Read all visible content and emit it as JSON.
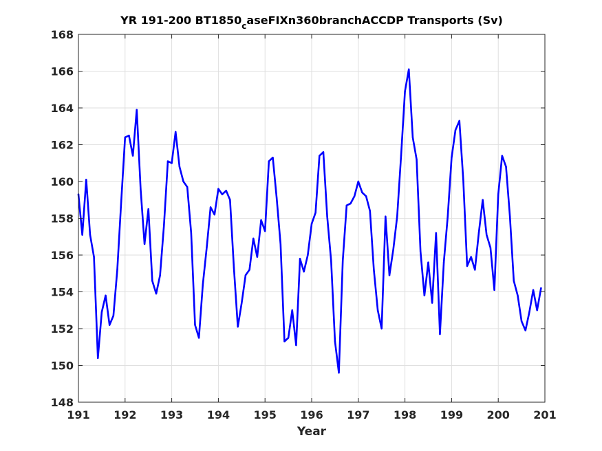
{
  "chart_data": {
    "type": "line",
    "title": {
      "main": "YR 191-200 BT1850",
      "subscript": "c",
      "rest": "aseFIXn360branchACCDP Transports (Sv)"
    },
    "xlabel": "Year",
    "ylabel": "",
    "xlim": [
      191,
      201
    ],
    "ylim": [
      148,
      168
    ],
    "xticks": [
      "191",
      "192",
      "193",
      "194",
      "195",
      "196",
      "197",
      "198",
      "199",
      "200",
      "201"
    ],
    "yticks": [
      "148",
      "150",
      "152",
      "154",
      "156",
      "158",
      "160",
      "162",
      "164",
      "166",
      "168"
    ],
    "grid": true,
    "line_color": "#0000ff",
    "series": [
      {
        "values": [
          [
            191.0,
            159.3
          ],
          [
            191.083,
            157.1
          ],
          [
            191.167,
            160.1
          ],
          [
            191.25,
            157.1
          ],
          [
            191.333,
            155.9
          ],
          [
            191.417,
            150.4
          ],
          [
            191.5,
            152.9
          ],
          [
            191.583,
            153.8
          ],
          [
            191.667,
            152.2
          ],
          [
            191.75,
            152.7
          ],
          [
            191.833,
            155.2
          ],
          [
            191.917,
            158.9
          ],
          [
            192.0,
            162.4
          ],
          [
            192.083,
            162.5
          ],
          [
            192.167,
            161.4
          ],
          [
            192.25,
            163.9
          ],
          [
            192.333,
            159.6
          ],
          [
            192.417,
            156.6
          ],
          [
            192.5,
            158.5
          ],
          [
            192.583,
            154.6
          ],
          [
            192.667,
            153.9
          ],
          [
            192.75,
            154.9
          ],
          [
            192.833,
            157.6
          ],
          [
            192.917,
            161.1
          ],
          [
            193.0,
            161.0
          ],
          [
            193.083,
            162.7
          ],
          [
            193.167,
            160.8
          ],
          [
            193.25,
            160.0
          ],
          [
            193.333,
            159.7
          ],
          [
            193.417,
            157.2
          ],
          [
            193.5,
            152.2
          ],
          [
            193.583,
            151.5
          ],
          [
            193.667,
            154.4
          ],
          [
            193.75,
            156.4
          ],
          [
            193.833,
            158.6
          ],
          [
            193.917,
            158.2
          ],
          [
            194.0,
            159.6
          ],
          [
            194.083,
            159.3
          ],
          [
            194.167,
            159.5
          ],
          [
            194.25,
            159.0
          ],
          [
            194.333,
            155.3
          ],
          [
            194.417,
            152.1
          ],
          [
            194.5,
            153.4
          ],
          [
            194.583,
            154.9
          ],
          [
            194.667,
            155.2
          ],
          [
            194.75,
            156.9
          ],
          [
            194.833,
            155.9
          ],
          [
            194.917,
            157.9
          ],
          [
            195.0,
            157.3
          ],
          [
            195.083,
            161.1
          ],
          [
            195.167,
            161.3
          ],
          [
            195.25,
            159.1
          ],
          [
            195.333,
            156.6
          ],
          [
            195.417,
            151.3
          ],
          [
            195.5,
            151.5
          ],
          [
            195.583,
            153.0
          ],
          [
            195.667,
            151.1
          ],
          [
            195.75,
            155.8
          ],
          [
            195.833,
            155.1
          ],
          [
            195.917,
            156.0
          ],
          [
            196.0,
            157.7
          ],
          [
            196.083,
            158.3
          ],
          [
            196.167,
            161.4
          ],
          [
            196.25,
            161.6
          ],
          [
            196.333,
            158.1
          ],
          [
            196.417,
            155.7
          ],
          [
            196.5,
            151.3
          ],
          [
            196.583,
            149.6
          ],
          [
            196.667,
            155.7
          ],
          [
            196.75,
            158.7
          ],
          [
            196.833,
            158.8
          ],
          [
            196.917,
            159.2
          ],
          [
            197.0,
            160.0
          ],
          [
            197.083,
            159.4
          ],
          [
            197.167,
            159.2
          ],
          [
            197.25,
            158.4
          ],
          [
            197.333,
            155.2
          ],
          [
            197.417,
            153.0
          ],
          [
            197.5,
            152.0
          ],
          [
            197.583,
            158.1
          ],
          [
            197.667,
            154.9
          ],
          [
            197.75,
            156.3
          ],
          [
            197.833,
            158.1
          ],
          [
            197.917,
            161.4
          ],
          [
            198.0,
            164.9
          ],
          [
            198.083,
            166.1
          ],
          [
            198.167,
            162.4
          ],
          [
            198.25,
            161.2
          ],
          [
            198.333,
            156.2
          ],
          [
            198.417,
            153.8
          ],
          [
            198.5,
            155.6
          ],
          [
            198.583,
            153.4
          ],
          [
            198.667,
            157.2
          ],
          [
            198.75,
            151.7
          ],
          [
            198.833,
            155.6
          ],
          [
            198.917,
            158.1
          ],
          [
            199.0,
            161.3
          ],
          [
            199.083,
            162.8
          ],
          [
            199.167,
            163.3
          ],
          [
            199.25,
            160.1
          ],
          [
            199.333,
            155.4
          ],
          [
            199.417,
            155.9
          ],
          [
            199.5,
            155.2
          ],
          [
            199.583,
            157.2
          ],
          [
            199.667,
            159.0
          ],
          [
            199.75,
            157.1
          ],
          [
            199.833,
            156.4
          ],
          [
            199.917,
            154.1
          ],
          [
            200.0,
            159.3
          ],
          [
            200.083,
            161.4
          ],
          [
            200.167,
            160.8
          ],
          [
            200.25,
            158.1
          ],
          [
            200.333,
            154.6
          ],
          [
            200.417,
            153.8
          ],
          [
            200.5,
            152.4
          ],
          [
            200.583,
            151.9
          ],
          [
            200.667,
            152.9
          ],
          [
            200.75,
            154.1
          ],
          [
            200.833,
            153.0
          ],
          [
            200.917,
            154.2
          ]
        ]
      }
    ]
  }
}
